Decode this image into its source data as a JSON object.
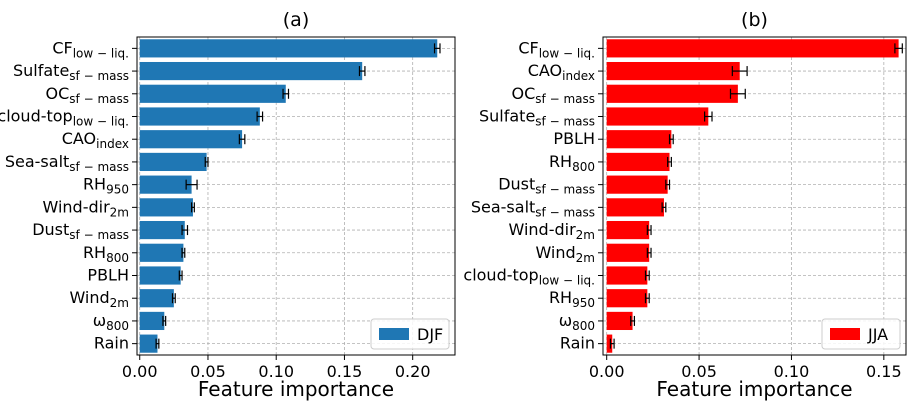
{
  "chart_data": [
    {
      "type": "bar",
      "orientation": "horizontal",
      "title": "(a)",
      "xlabel": "Feature importance",
      "categories": [
        {
          "label": "CF",
          "sub": "low − liq."
        },
        {
          "label": "Sulfate",
          "sub": "sf − mass"
        },
        {
          "label": "OC",
          "sub": "sf − mass"
        },
        {
          "label": "cloud-top",
          "sub": "low − liq."
        },
        {
          "label": "CAO",
          "sub": "index"
        },
        {
          "label": "Sea-salt",
          "sub": "sf − mass"
        },
        {
          "label": "RH",
          "sub": "950"
        },
        {
          "label": "Wind-dir",
          "sub": "2m"
        },
        {
          "label": "Dust",
          "sub": "sf − mass"
        },
        {
          "label": "RH",
          "sub": "800"
        },
        {
          "label": "PBLH"
        },
        {
          "label": "Wind",
          "sub": "2m"
        },
        {
          "label": "ω",
          "sub": "800"
        },
        {
          "label": "Rain"
        }
      ],
      "series": [
        {
          "name": "DJF",
          "color": "#1f77b4",
          "values": [
            0.218,
            0.163,
            0.107,
            0.088,
            0.075,
            0.049,
            0.038,
            0.039,
            0.033,
            0.032,
            0.03,
            0.025,
            0.018,
            0.013
          ],
          "errors": [
            0.002,
            0.002,
            0.002,
            0.002,
            0.002,
            0.001,
            0.004,
            0.001,
            0.002,
            0.001,
            0.001,
            0.001,
            0.001,
            0.001
          ]
        }
      ],
      "xlim": [
        -0.002,
        0.231
      ],
      "xticks": [
        {
          "value": 0,
          "label": "0.00"
        },
        {
          "value": 0.05,
          "label": "0.05"
        },
        {
          "value": 0.1,
          "label": "0.10"
        },
        {
          "value": 0.15,
          "label": "0.15"
        },
        {
          "value": 0.2,
          "label": "0.20"
        }
      ],
      "grid": true,
      "legend": "lower right"
    },
    {
      "type": "bar",
      "orientation": "horizontal",
      "title": "(b)",
      "xlabel": "Feature importance",
      "categories": [
        {
          "label": "CF",
          "sub": "low − liq."
        },
        {
          "label": "CAO",
          "sub": "index"
        },
        {
          "label": "OC",
          "sub": "sf − mass"
        },
        {
          "label": "Sulfate",
          "sub": "sf − mass"
        },
        {
          "label": "PBLH"
        },
        {
          "label": "RH",
          "sub": "800"
        },
        {
          "label": "Dust",
          "sub": "sf − mass"
        },
        {
          "label": "Sea-salt",
          "sub": "sf − mass"
        },
        {
          "label": "Wind-dir",
          "sub": "2m"
        },
        {
          "label": "Wind",
          "sub": "2m"
        },
        {
          "label": "cloud-top",
          "sub": "low − liq."
        },
        {
          "label": "RH",
          "sub": "950"
        },
        {
          "label": "ω",
          "sub": "800"
        },
        {
          "label": "Rain"
        }
      ],
      "series": [
        {
          "name": "JJA",
          "color": "#ff0000",
          "values": [
            0.158,
            0.072,
            0.071,
            0.055,
            0.035,
            0.034,
            0.033,
            0.031,
            0.023,
            0.023,
            0.022,
            0.022,
            0.014,
            0.003
          ],
          "errors": [
            0.002,
            0.004,
            0.004,
            0.002,
            0.001,
            0.001,
            0.001,
            0.001,
            0.001,
            0.001,
            0.001,
            0.001,
            0.001,
            0.001
          ]
        }
      ],
      "xlim": [
        -0.002,
        0.162
      ],
      "xticks": [
        {
          "value": 0,
          "label": "0.00"
        },
        {
          "value": 0.05,
          "label": "0.05"
        },
        {
          "value": 0.1,
          "label": "0.10"
        },
        {
          "value": 0.15,
          "label": "0.15"
        }
      ],
      "grid": true,
      "legend": "lower right"
    }
  ]
}
